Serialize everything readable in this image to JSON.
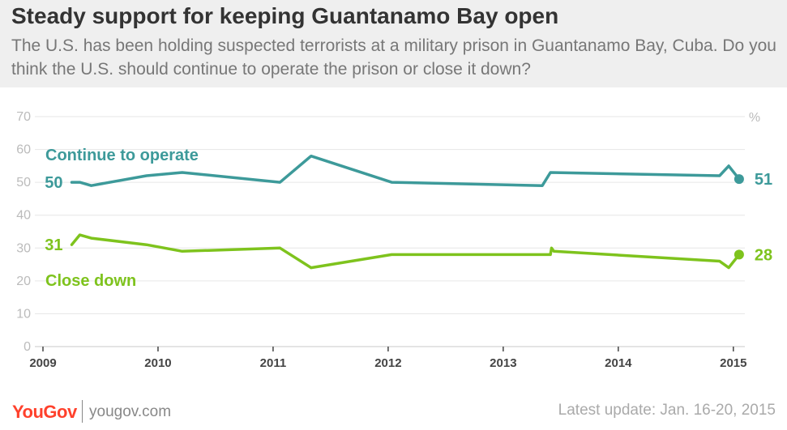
{
  "header": {
    "title": "Steady support for keeping Guantanamo Bay open",
    "subtitle": "The U.S. has been holding suspected terrorists at a military prison in Guantanamo Bay, Cuba. Do you think the U.S. should continue to operate the prison or close it down?"
  },
  "footer": {
    "logo": "YouGov",
    "site": "yougov.com",
    "update": "Latest update: Jan. 16-20, 2015"
  },
  "colors": {
    "continue": "#3d9a9a",
    "close": "#7ec31d",
    "grid": "#e6e6e6",
    "tick": "#bbbbbb"
  },
  "chart_data": {
    "type": "line",
    "unit_label": "%",
    "ylim": [
      0,
      70
    ],
    "yticks": [
      0,
      10,
      20,
      30,
      40,
      50,
      60,
      70
    ],
    "xlim": [
      2009,
      2015.1
    ],
    "xticks": [
      2009,
      2010,
      2011,
      2012,
      2013,
      2014,
      2015
    ],
    "series": [
      {
        "name": "Continue to operate",
        "start_label": "50",
        "end_label": "51",
        "points": [
          [
            2009.25,
            50
          ],
          [
            2009.32,
            50
          ],
          [
            2009.42,
            49
          ],
          [
            2009.9,
            52
          ],
          [
            2010.21,
            53
          ],
          [
            2011.06,
            50
          ],
          [
            2011.33,
            58
          ],
          [
            2012.03,
            50
          ],
          [
            2013.34,
            49
          ],
          [
            2013.41,
            53
          ],
          [
            2014.88,
            52
          ],
          [
            2014.96,
            55
          ],
          [
            2015.05,
            51
          ]
        ]
      },
      {
        "name": "Close down",
        "start_label": "31",
        "end_label": "28",
        "points": [
          [
            2009.25,
            31
          ],
          [
            2009.32,
            34
          ],
          [
            2009.42,
            33
          ],
          [
            2009.9,
            31
          ],
          [
            2010.21,
            29
          ],
          [
            2011.06,
            30
          ],
          [
            2011.33,
            24
          ],
          [
            2012.03,
            28
          ],
          [
            2013.41,
            28
          ],
          [
            2013.42,
            30
          ],
          [
            2013.44,
            29
          ],
          [
            2014.88,
            26
          ],
          [
            2014.96,
            24
          ],
          [
            2015.05,
            28
          ]
        ]
      }
    ]
  }
}
